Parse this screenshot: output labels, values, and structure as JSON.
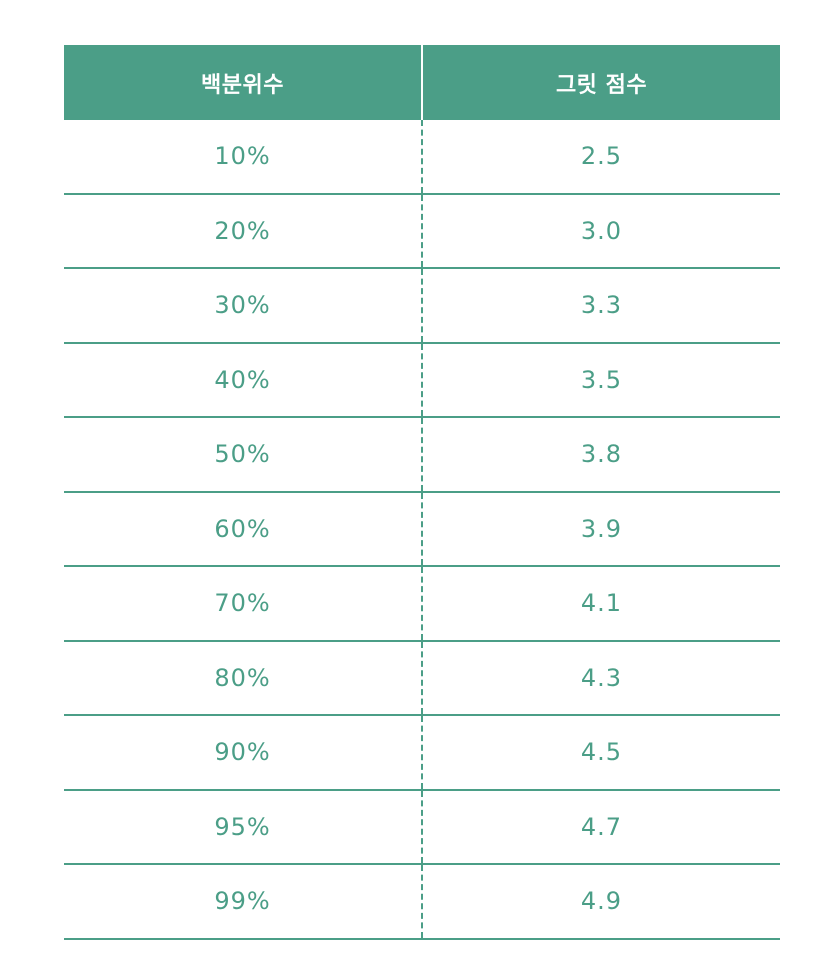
{
  "table": {
    "headers": [
      "백분위수",
      "그릿 점수"
    ],
    "rows": [
      [
        "10%",
        "2.5"
      ],
      [
        "20%",
        "3.0"
      ],
      [
        "30%",
        "3.3"
      ],
      [
        "40%",
        "3.5"
      ],
      [
        "50%",
        "3.8"
      ],
      [
        "60%",
        "3.9"
      ],
      [
        "70%",
        "4.1"
      ],
      [
        "80%",
        "4.3"
      ],
      [
        "90%",
        "4.5"
      ],
      [
        "95%",
        "4.7"
      ],
      [
        "99%",
        "4.9"
      ]
    ]
  },
  "colors": {
    "accent": "#4b9e87",
    "header_text": "#ffffff",
    "background": "#ffffff"
  }
}
